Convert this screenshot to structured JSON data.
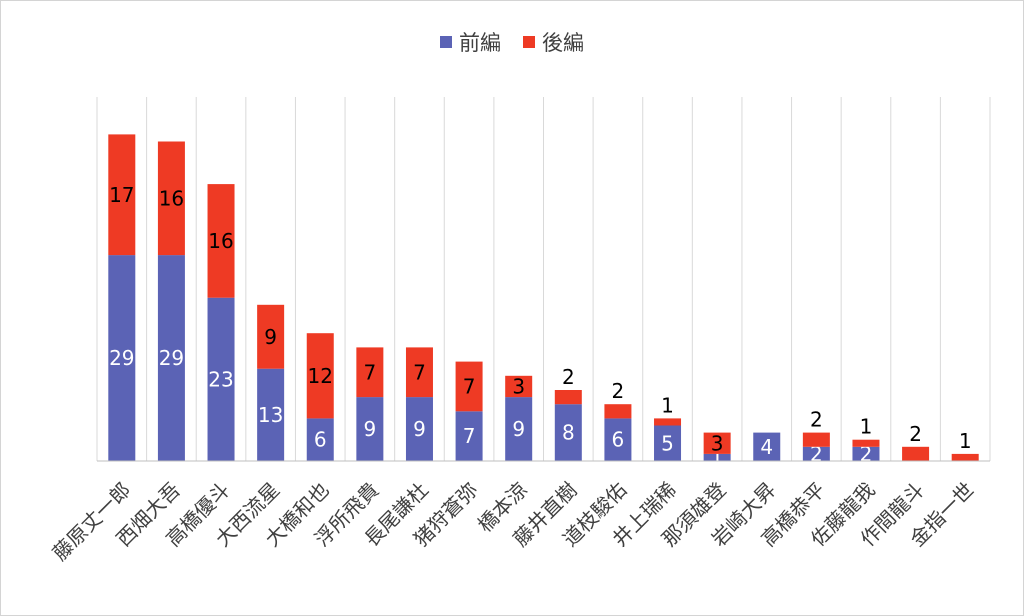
{
  "chart_data": {
    "type": "bar",
    "stacked": true,
    "categories": [
      "藤原丈一郎",
      "西畑大吾",
      "高橋優斗",
      "大西流星",
      "大橋和也",
      "浮所飛貴",
      "長尾謙杜",
      "猪狩蒼弥",
      "橋本涼",
      "藤井直樹",
      "道枝駿佑",
      "井上瑞稀",
      "那須雄登",
      "岩崎大昇",
      "高橋恭平",
      "佐藤龍我",
      "作間龍斗",
      "金指一世"
    ],
    "series": [
      {
        "name": "前編",
        "color": "#5b63b5",
        "values": [
          29,
          29,
          23,
          13,
          6,
          9,
          9,
          7,
          9,
          8,
          6,
          5,
          1,
          4,
          2,
          2,
          0,
          0
        ]
      },
      {
        "name": "後編",
        "color": "#ee3a24",
        "values": [
          17,
          16,
          16,
          9,
          12,
          7,
          7,
          7,
          3,
          2,
          2,
          1,
          3,
          0,
          2,
          1,
          2,
          1
        ]
      }
    ],
    "ylim": [
      0,
      50
    ],
    "grid": "vertical",
    "legend": "top-center"
  }
}
